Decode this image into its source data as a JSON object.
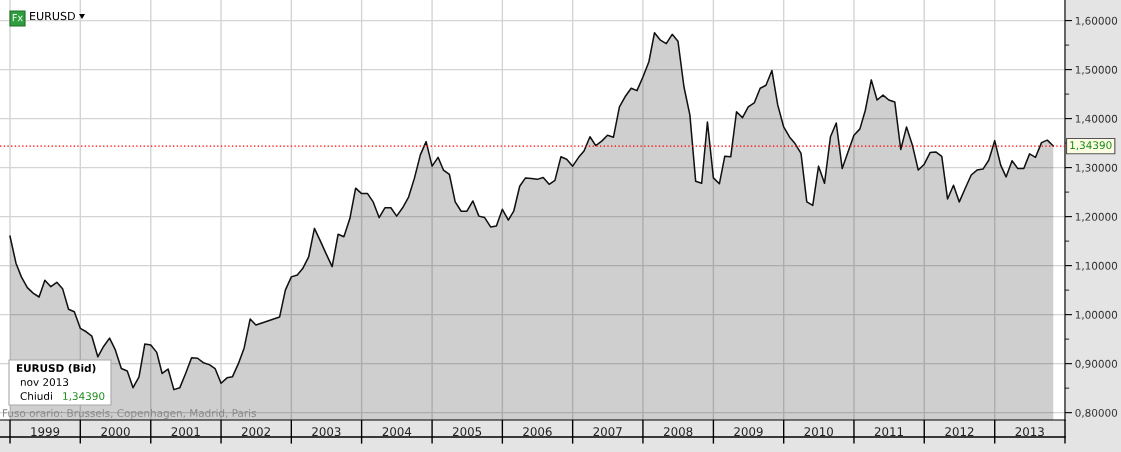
{
  "chart_data": {
    "type": "area",
    "title": "EURUSD",
    "x": [
      "1999-01",
      "1999-02",
      "1999-03",
      "1999-04",
      "1999-05",
      "1999-06",
      "1999-07",
      "1999-08",
      "1999-09",
      "1999-10",
      "1999-11",
      "1999-12",
      "2000-01",
      "2000-02",
      "2000-03",
      "2000-04",
      "2000-05",
      "2000-06",
      "2000-07",
      "2000-08",
      "2000-09",
      "2000-10",
      "2000-11",
      "2000-12",
      "2001-01",
      "2001-02",
      "2001-03",
      "2001-04",
      "2001-05",
      "2001-06",
      "2001-07",
      "2001-08",
      "2001-09",
      "2001-10",
      "2001-11",
      "2001-12",
      "2002-01",
      "2002-02",
      "2002-03",
      "2002-04",
      "2002-05",
      "2002-06",
      "2002-07",
      "2002-08",
      "2002-09",
      "2002-10",
      "2002-11",
      "2002-12",
      "2003-01",
      "2003-02",
      "2003-03",
      "2003-04",
      "2003-05",
      "2003-06",
      "2003-07",
      "2003-08",
      "2003-09",
      "2003-10",
      "2003-11",
      "2003-12",
      "2004-01",
      "2004-02",
      "2004-03",
      "2004-04",
      "2004-05",
      "2004-06",
      "2004-07",
      "2004-08",
      "2004-09",
      "2004-10",
      "2004-11",
      "2004-12",
      "2005-01",
      "2005-02",
      "2005-03",
      "2005-04",
      "2005-05",
      "2005-06",
      "2005-07",
      "2005-08",
      "2005-09",
      "2005-10",
      "2005-11",
      "2005-12",
      "2006-01",
      "2006-02",
      "2006-03",
      "2006-04",
      "2006-05",
      "2006-06",
      "2006-07",
      "2006-08",
      "2006-09",
      "2006-10",
      "2006-11",
      "2006-12",
      "2007-01",
      "2007-02",
      "2007-03",
      "2007-04",
      "2007-05",
      "2007-06",
      "2007-07",
      "2007-08",
      "2007-09",
      "2007-10",
      "2007-11",
      "2007-12",
      "2008-01",
      "2008-02",
      "2008-03",
      "2008-04",
      "2008-05",
      "2008-06",
      "2008-07",
      "2008-08",
      "2008-09",
      "2008-10",
      "2008-11",
      "2008-12",
      "2009-01",
      "2009-02",
      "2009-03",
      "2009-04",
      "2009-05",
      "2009-06",
      "2009-07",
      "2009-08",
      "2009-09",
      "2009-10",
      "2009-11",
      "2009-12",
      "2010-01",
      "2010-02",
      "2010-03",
      "2010-04",
      "2010-05",
      "2010-06",
      "2010-07",
      "2010-08",
      "2010-09",
      "2010-10",
      "2010-11",
      "2010-12",
      "2011-01",
      "2011-02",
      "2011-03",
      "2011-04",
      "2011-05",
      "2011-06",
      "2011-07",
      "2011-08",
      "2011-09",
      "2011-10",
      "2011-11",
      "2011-12",
      "2012-01",
      "2012-02",
      "2012-03",
      "2012-04",
      "2012-05",
      "2012-06",
      "2012-07",
      "2012-08",
      "2012-09",
      "2012-10",
      "2012-11",
      "2012-12",
      "2013-01",
      "2013-02",
      "2013-03",
      "2013-04",
      "2013-05",
      "2013-06",
      "2013-07",
      "2013-08",
      "2013-09",
      "2013-10",
      "2013-11"
    ],
    "series": [
      {
        "color": "#111111",
        "values": [
          1.16,
          1.105,
          1.077,
          1.055,
          1.044,
          1.036,
          1.07,
          1.057,
          1.066,
          1.053,
          1.011,
          1.006,
          0.972,
          0.965,
          0.956,
          0.914,
          0.935,
          0.952,
          0.928,
          0.89,
          0.885,
          0.851,
          0.873,
          0.94,
          0.938,
          0.923,
          0.88,
          0.889,
          0.847,
          0.851,
          0.88,
          0.912,
          0.911,
          0.902,
          0.898,
          0.89,
          0.86,
          0.871,
          0.873,
          0.9,
          0.932,
          0.991,
          0.979,
          0.983,
          0.987,
          0.991,
          0.995,
          1.05,
          1.077,
          1.081,
          1.094,
          1.118,
          1.176,
          1.15,
          1.124,
          1.098,
          1.164,
          1.159,
          1.196,
          1.258,
          1.247,
          1.247,
          1.23,
          1.198,
          1.218,
          1.218,
          1.201,
          1.218,
          1.24,
          1.278,
          1.326,
          1.353,
          1.303,
          1.321,
          1.295,
          1.286,
          1.23,
          1.211,
          1.211,
          1.232,
          1.201,
          1.198,
          1.179,
          1.181,
          1.215,
          1.193,
          1.211,
          1.262,
          1.279,
          1.278,
          1.276,
          1.28,
          1.266,
          1.274,
          1.322,
          1.317,
          1.303,
          1.321,
          1.334,
          1.363,
          1.345,
          1.354,
          1.366,
          1.362,
          1.424,
          1.445,
          1.462,
          1.457,
          1.485,
          1.516,
          1.575,
          1.56,
          1.553,
          1.572,
          1.558,
          1.465,
          1.407,
          1.272,
          1.268,
          1.393,
          1.279,
          1.267,
          1.323,
          1.322,
          1.414,
          1.402,
          1.424,
          1.432,
          1.462,
          1.468,
          1.498,
          1.428,
          1.383,
          1.362,
          1.349,
          1.329,
          1.23,
          1.223,
          1.303,
          1.268,
          1.363,
          1.391,
          1.298,
          1.332,
          1.366,
          1.379,
          1.417,
          1.479,
          1.438,
          1.448,
          1.438,
          1.434,
          1.337,
          1.383,
          1.345,
          1.295,
          1.307,
          1.331,
          1.332,
          1.323,
          1.236,
          1.264,
          1.23,
          1.258,
          1.285,
          1.295,
          1.297,
          1.315,
          1.355,
          1.305,
          1.281,
          1.314,
          1.298,
          1.298,
          1.328,
          1.321,
          1.351,
          1.356,
          1.344
        ]
      }
    ],
    "xlim": [
      "1998-11-10",
      "2014-01-01"
    ],
    "xticks": [
      {
        "value": "1999-01-01",
        "label": null
      },
      {
        "value": "2000-01-01",
        "label": null
      },
      {
        "value": "2001-01-01",
        "label": null
      },
      {
        "value": "2002-01-01",
        "label": null
      },
      {
        "value": "2003-01-01",
        "label": null
      },
      {
        "value": "2004-01-01",
        "label": null
      },
      {
        "value": "2005-01-01",
        "label": null
      },
      {
        "value": "2006-01-01",
        "label": null
      },
      {
        "value": "2007-01-01",
        "label": null
      },
      {
        "value": "2008-01-01",
        "label": null
      },
      {
        "value": "2009-01-01",
        "label": null
      },
      {
        "value": "2010-01-01",
        "label": null
      },
      {
        "value": "2011-01-01",
        "label": null
      },
      {
        "value": "2012-01-01",
        "label": null
      },
      {
        "value": "2013-01-01",
        "label": null
      },
      {
        "value": "2014-01-01",
        "label": null
      },
      {
        "value": "1999-07-02",
        "label": "1999"
      },
      {
        "value": "2000-07-02",
        "label": "2000"
      },
      {
        "value": "2001-07-02",
        "label": "2001"
      },
      {
        "value": "2002-07-02",
        "label": "2002"
      },
      {
        "value": "2003-07-02",
        "label": "2003"
      },
      {
        "value": "2004-07-02",
        "label": "2004"
      },
      {
        "value": "2005-07-02",
        "label": "2005"
      },
      {
        "value": "2006-07-02",
        "label": "2006"
      },
      {
        "value": "2007-07-02",
        "label": "2007"
      },
      {
        "value": "2008-07-02",
        "label": "2008"
      },
      {
        "value": "2009-07-02",
        "label": "2009"
      },
      {
        "value": "2010-07-02",
        "label": "2010"
      },
      {
        "value": "2011-07-02",
        "label": "2011"
      },
      {
        "value": "2012-07-02",
        "label": "2012"
      },
      {
        "value": "2013-07-02",
        "label": "2013"
      }
    ],
    "ylim": [
      0.785,
      1.642
    ],
    "yticks": [
      {
        "value": 0.8,
        "label": "0,80000"
      },
      {
        "value": 0.9,
        "label": "0,90000"
      },
      {
        "value": 1.0,
        "label": "1,00000"
      },
      {
        "value": 1.1,
        "label": "1,10000"
      },
      {
        "value": 1.2,
        "label": "1,20000"
      },
      {
        "value": 1.3,
        "label": "1,30000"
      },
      {
        "value": 1.4,
        "label": "1,40000"
      },
      {
        "value": 1.5,
        "label": "1,50000"
      },
      {
        "value": 1.6,
        "label": "1,60000"
      },
      {
        "value": 0.85,
        "label": null
      },
      {
        "value": 0.95,
        "label": null
      },
      {
        "value": 1.05,
        "label": null
      },
      {
        "value": 1.15,
        "label": null
      },
      {
        "value": 1.25,
        "label": null
      },
      {
        "value": 1.35,
        "label": null
      },
      {
        "value": 1.45,
        "label": null
      },
      {
        "value": 1.55,
        "label": null
      }
    ],
    "grid": true,
    "ref_lines": [
      {
        "axis": "y",
        "value": 1.3439,
        "label": "1,34390",
        "color": "#ff0000",
        "line_style": "dotted"
      }
    ],
    "annotations": [
      "Fx",
      "EURUSD (Bid)",
      "nov 2013",
      "Chiudi",
      "1,34390",
      "Fuso orario: Brussels, Copenhagen, Madrid, Paris"
    ]
  }
}
